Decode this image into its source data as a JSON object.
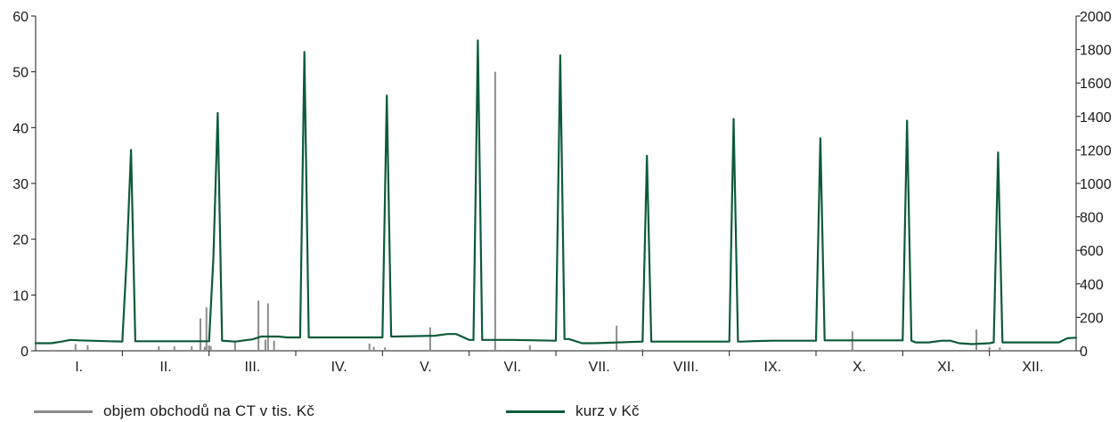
{
  "chart_data": {
    "type": "line",
    "title": "",
    "xlabel": "",
    "ylabel": "",
    "categories": [
      "I.",
      "II.",
      "III.",
      "IV.",
      "V.",
      "VI.",
      "VII.",
      "VIII.",
      "IX.",
      "X.",
      "XI.",
      "XII."
    ],
    "y_left": {
      "range": [
        0,
        60
      ],
      "ticks": [
        0,
        10,
        20,
        30,
        40,
        50,
        60
      ]
    },
    "y_right": {
      "range": [
        0,
        2000
      ],
      "ticks": [
        0,
        200,
        400,
        600,
        800,
        1000,
        1200,
        1400,
        1600,
        1800,
        2000
      ]
    },
    "grid": false,
    "legend_position": "bottom",
    "x_domain": [
      0,
      12
    ],
    "colors": {
      "volume": "#8c8c8c",
      "price": "#0d5b3a"
    },
    "series": [
      {
        "name": "objem obchodů na CT v tis. Kč",
        "kind": "bars",
        "axis": "left",
        "color": "#8c8c8c",
        "x": [
          0.46,
          0.6,
          1.42,
          1.6,
          1.8,
          1.9,
          1.95,
          1.97,
          2.0,
          2.02,
          2.3,
          2.57,
          2.65,
          2.68,
          2.75,
          3.85,
          3.9,
          4.03,
          4.55,
          5.3,
          5.7,
          6.7,
          7.0,
          9.42,
          10.85,
          11.0,
          11.12
        ],
        "y": [
          1.2,
          1.0,
          0.8,
          0.8,
          0.8,
          5.8,
          0.7,
          7.8,
          1.0,
          0.8,
          1.5,
          9.0,
          2.0,
          8.5,
          1.8,
          1.3,
          0.7,
          0.6,
          4.2,
          50.0,
          1.0,
          4.5,
          0.3,
          3.5,
          3.8,
          0.7,
          0.6
        ]
      },
      {
        "name": "kurz v Kč",
        "kind": "line",
        "axis": "right",
        "color": "#0d5b3a",
        "x": [
          0.0,
          0.18,
          0.3,
          0.4,
          0.5,
          1.0,
          1.05,
          1.1,
          1.15,
          2.0,
          2.05,
          2.1,
          2.15,
          2.3,
          2.5,
          2.6,
          2.8,
          2.9,
          3.05,
          3.1,
          3.15,
          3.2,
          4.0,
          4.05,
          4.1,
          4.15,
          4.6,
          4.75,
          4.85,
          5.0,
          5.05,
          5.1,
          5.15,
          5.2,
          5.5,
          6.0,
          6.05,
          6.1,
          6.15,
          6.3,
          6.45,
          7.0,
          7.05,
          7.1,
          7.15,
          7.5,
          8.0,
          8.05,
          8.1,
          8.15,
          8.3,
          8.5,
          9.0,
          9.05,
          9.1,
          9.15,
          10.0,
          10.05,
          10.1,
          10.15,
          10.3,
          10.45,
          10.55,
          10.65,
          10.8,
          11.0,
          11.05,
          11.1,
          11.15,
          11.3,
          11.5,
          11.8,
          11.9,
          12.0
        ],
        "y": [
          45,
          45,
          55,
          65,
          62,
          55,
          550,
          1200,
          57,
          57,
          550,
          1420,
          60,
          55,
          68,
          85,
          85,
          80,
          80,
          1785,
          80,
          80,
          80,
          1525,
          85,
          85,
          90,
          100,
          100,
          65,
          65,
          1855,
          65,
          65,
          65,
          60,
          1765,
          70,
          70,
          45,
          45,
          55,
          1165,
          55,
          55,
          55,
          55,
          1385,
          55,
          55,
          58,
          60,
          60,
          1270,
          62,
          62,
          62,
          1375,
          60,
          50,
          50,
          60,
          60,
          45,
          40,
          45,
          50,
          1185,
          50,
          50,
          50,
          50,
          75,
          78
        ]
      }
    ]
  }
}
